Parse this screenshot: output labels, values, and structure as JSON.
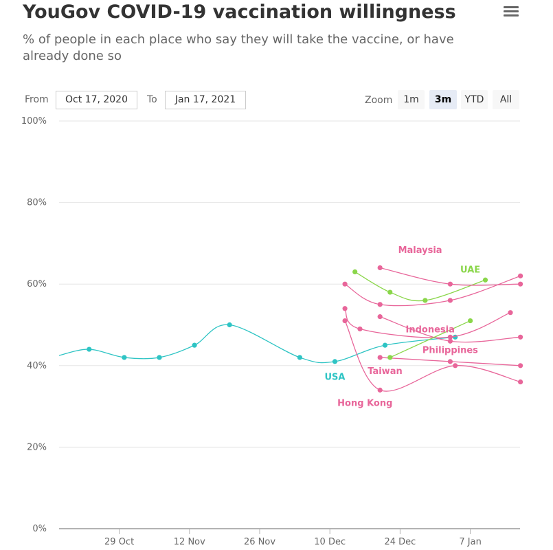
{
  "title": "YouGov COVID-19 vaccination willingness",
  "subtitle": "% of people in each place who say they will take the vaccine, or have already done so",
  "menu": {
    "icon": "hamburger-menu-icon"
  },
  "range_selector": {
    "from_label": "From",
    "from_value": "Oct 17, 2020",
    "to_label": "To",
    "to_value": "Jan 17, 2021",
    "zoom_label": "Zoom",
    "zoom_buttons": [
      "1m",
      "3m",
      "YTD",
      "All"
    ],
    "active_zoom": "3m"
  },
  "chart_data": {
    "type": "line",
    "x_axis": {
      "type": "date",
      "range": [
        "2020-10-17",
        "2021-01-17"
      ],
      "ticks": [
        "2020-10-29",
        "2020-11-12",
        "2020-11-26",
        "2020-12-10",
        "2020-12-24",
        "2021-01-07"
      ],
      "tick_labels": [
        "29 Oct",
        "12 Nov",
        "26 Nov",
        "10 Dec",
        "24 Dec",
        "7 Jan"
      ]
    },
    "y_axis": {
      "range": [
        0,
        100
      ],
      "ticks": [
        0,
        20,
        40,
        60,
        80,
        100
      ],
      "tick_labels": [
        "0%",
        "20%",
        "40%",
        "60%",
        "80%",
        "100%"
      ]
    },
    "grid": true,
    "legend": "none",
    "series": [
      {
        "name": "USA",
        "color": "#2ec4c4",
        "label_at": [
          "2020-12-11",
          37.2
        ],
        "smooth": true,
        "marker_from": 1,
        "points": [
          [
            "2020-10-17",
            42.5
          ],
          [
            "2020-10-23",
            44
          ],
          [
            "2020-10-30",
            42
          ],
          [
            "2020-11-06",
            42
          ],
          [
            "2020-11-13",
            45
          ],
          [
            "2020-11-20",
            50
          ],
          [
            "2020-12-04",
            42
          ],
          [
            "2020-12-11",
            41
          ],
          [
            "2020-12-21",
            45
          ],
          [
            "2021-01-04",
            47
          ]
        ]
      },
      {
        "name": "UAE",
        "color": "#8ad64a",
        "label_at": [
          "2021-01-07",
          63.5
        ],
        "smooth": true,
        "points": [
          [
            "2020-12-15",
            63
          ],
          [
            "2020-12-22",
            58
          ],
          [
            "2020-12-29",
            56
          ],
          [
            "2021-01-10",
            61
          ]
        ]
      },
      {
        "name": "Malaysia",
        "color": "#e8669a",
        "label_at": [
          "2020-12-28",
          68.3
        ],
        "smooth": true,
        "points": [
          [
            "2020-12-20",
            64
          ],
          [
            "2021-01-03",
            60
          ],
          [
            "2021-01-17",
            60
          ]
        ]
      },
      {
        "name": "",
        "color": "#e8669a",
        "smooth": true,
        "points": [
          [
            "2020-12-13",
            60
          ],
          [
            "2020-12-20",
            55
          ],
          [
            "2021-01-03",
            56
          ],
          [
            "2021-01-17",
            62
          ]
        ]
      },
      {
        "name": "Indonesia",
        "color": "#e8669a",
        "label_at": [
          "2020-12-30",
          48.8
        ],
        "smooth": true,
        "points": [
          [
            "2020-12-20",
            52
          ],
          [
            "2021-01-03",
            46
          ],
          [
            "2021-01-17",
            47
          ]
        ]
      },
      {
        "name": "Philippines",
        "color": "#e8669a",
        "label_at": [
          "2021-01-03",
          43.8
        ],
        "smooth": true,
        "points": [
          [
            "2020-12-13",
            54
          ],
          [
            "2020-12-16",
            49
          ],
          [
            "2021-01-03",
            47
          ],
          [
            "2021-01-15",
            53
          ]
        ]
      },
      {
        "name": "Taiwan",
        "color": "#e8669a",
        "label_at": [
          "2020-12-21",
          38.6
        ],
        "smooth": true,
        "points": [
          [
            "2020-12-20",
            42
          ],
          [
            "2021-01-03",
            41
          ],
          [
            "2021-01-17",
            40
          ]
        ]
      },
      {
        "name": "Hong Kong",
        "color": "#e8669a",
        "label_at": [
          "2020-12-17",
          30.8
        ],
        "smooth": true,
        "points": [
          [
            "2020-12-13",
            51
          ],
          [
            "2020-12-20",
            34
          ],
          [
            "2021-01-04",
            40
          ],
          [
            "2021-01-17",
            36
          ]
        ]
      },
      {
        "name": "",
        "color": "#8ad64a",
        "smooth": false,
        "points": [
          [
            "2020-12-22",
            42
          ],
          [
            "2021-01-07",
            51
          ]
        ]
      }
    ]
  }
}
